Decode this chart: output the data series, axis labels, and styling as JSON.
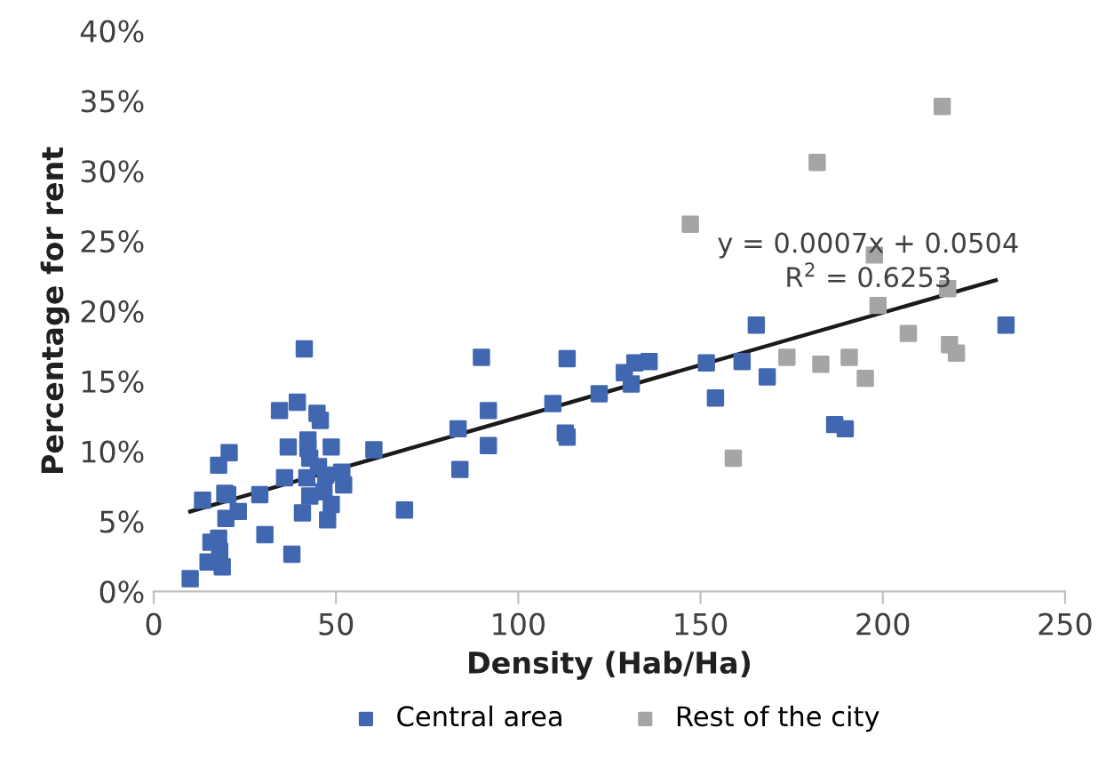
{
  "chart_data": {
    "type": "scatter",
    "xlabel": "Density (Hab/Ha)",
    "ylabel": "Percentage for rent",
    "marker": "square",
    "legend": "bottom",
    "grid": false,
    "xlim": [
      0,
      250
    ],
    "xticks": [
      0,
      50,
      100,
      150,
      200,
      250
    ],
    "ylim": [
      0,
      40
    ],
    "yticks": [
      {
        "value": 0,
        "label": "0%"
      },
      {
        "value": 5,
        "label": "5%"
      },
      {
        "value": 10,
        "label": "10%"
      },
      {
        "value": 15,
        "label": "15%"
      },
      {
        "value": 20,
        "label": "20%"
      },
      {
        "value": 25,
        "label": "25%"
      },
      {
        "value": 30,
        "label": "30%"
      },
      {
        "value": 35,
        "label": "35%"
      },
      {
        "value": 40,
        "label": "40%"
      }
    ],
    "annotations": [
      {
        "text": "y = 0.0007x + 0.0504\nR$^{2}$ = 0.6253",
        "x": 196,
        "y": 21.3
      }
    ],
    "series": [
      {
        "name": "Central area",
        "color": "#4167b1",
        "x": [
          10,
          14.9,
          18.8,
          15.7,
          17.8,
          18.1,
          19.8,
          13.4,
          19.5,
          20.3,
          23.2,
          17.8,
          20.7,
          29.1,
          30.5,
          37.9,
          34.5,
          39.4,
          41.3,
          36.9,
          35.9,
          40.8,
          42,
          42.8,
          42.3,
          42.3,
          42.8,
          44.8,
          45.7,
          45.2,
          47.2,
          46.7,
          48.7,
          47.7,
          48.7,
          51.6,
          52.1,
          60.4,
          68.8,
          83.5,
          84,
          89.9,
          91.8,
          91.8,
          113.4,
          109.5,
          112.9,
          113.4,
          122.2,
          129.1,
          131,
          132,
          135.9,
          151.6,
          154.1,
          161.4,
          165.3,
          168.3,
          186.8,
          189.7,
          233.8
        ],
        "values": [
          0.9,
          2.1,
          1.75,
          3.5,
          3.8,
          2.85,
          5.2,
          6.5,
          7.0,
          6.9,
          5.7,
          9.0,
          9.9,
          6.9,
          4.05,
          2.65,
          12.9,
          13.5,
          17.3,
          10.3,
          8.1,
          5.6,
          8.1,
          6.8,
          10.8,
          10.2,
          9.5,
          12.7,
          12.2,
          8.9,
          8.3,
          7.1,
          6.2,
          5.1,
          10.3,
          8.5,
          7.6,
          10.1,
          5.8,
          11.6,
          8.7,
          16.7,
          12.9,
          10.4,
          16.6,
          13.4,
          11.3,
          11.0,
          14.1,
          15.6,
          14.8,
          16.3,
          16.4,
          16.3,
          13.8,
          16.4,
          19.0,
          15.3,
          11.9,
          11.6,
          19.0
        ]
      },
      {
        "name": "Rest of the city",
        "color": "#a5a5a5",
        "x": [
          147.2,
          159,
          216.3,
          182,
          197.7,
          217.8,
          198.7,
          207,
          218.3,
          220.2,
          173.7,
          183,
          190.8,
          195.2
        ],
        "values": [
          26.2,
          9.5,
          34.6,
          30.6,
          24.0,
          21.6,
          20.4,
          18.4,
          17.6,
          17.0,
          16.7,
          16.2,
          16.7,
          15.2
        ]
      },
      {
        "type": "line",
        "color": "#1a1a1a",
        "marker": "none",
        "x": [
          10,
          231
        ],
        "values": [
          5.7,
          22.2
        ]
      }
    ]
  }
}
